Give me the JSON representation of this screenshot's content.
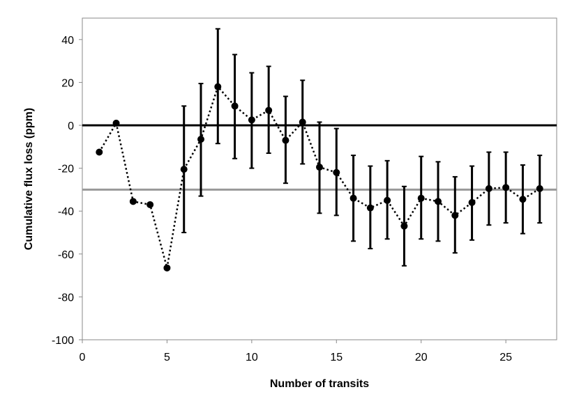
{
  "chart_data": {
    "type": "scatter",
    "title": "",
    "xlabel": "Number of transits",
    "ylabel": "Cumulative flux loss (ppm)",
    "xlim": [
      0,
      28
    ],
    "ylim": [
      -100,
      50
    ],
    "x_ticks": [
      0,
      5,
      10,
      15,
      20,
      25
    ],
    "y_ticks": [
      40,
      20,
      0,
      -20,
      -40,
      -60,
      -80,
      -100
    ],
    "x_tick_labels": [
      "0",
      "5",
      "10",
      "15",
      "20",
      "25"
    ],
    "y_tick_labels": [
      "40",
      "20",
      "0",
      "-20",
      "-40",
      "-60",
      "-80",
      "-100"
    ],
    "grid": false,
    "legend": "none",
    "series": [
      {
        "style": "dotted line with circular markers and vertical error bars",
        "color": "#000000",
        "x": [
          1,
          2,
          3,
          4,
          5,
          6,
          7,
          8,
          9,
          10,
          11,
          12,
          13,
          14,
          15,
          16,
          17,
          18,
          19,
          20,
          21,
          22,
          23,
          24,
          25,
          26,
          27
        ],
        "y": [
          -12.5,
          1,
          -35.5,
          -37,
          -66.5,
          -20.5,
          -6.5,
          18,
          9,
          2.5,
          7,
          -7,
          1.5,
          -19.5,
          -22,
          -34,
          -38.5,
          -35,
          -47,
          -34,
          -35.5,
          -42,
          -36,
          -29.5,
          -29,
          -34.5,
          -29.5
        ],
        "err_low": [
          null,
          null,
          null,
          null,
          null,
          -50,
          -33,
          -8.5,
          -15.5,
          -20,
          -13,
          -27,
          -18,
          -41,
          -42,
          -54,
          -57.5,
          -53,
          -65.5,
          -53,
          -54,
          -59.5,
          -53.5,
          -46.5,
          -45.5,
          -50.5,
          -45.5
        ],
        "err_high": [
          null,
          null,
          null,
          null,
          null,
          9,
          19.5,
          45,
          33,
          24.5,
          27.5,
          13.5,
          21,
          1.5,
          -1.5,
          -14,
          -19,
          -16.5,
          -28.5,
          -14.5,
          -17,
          -24,
          -19,
          -12.5,
          -12.5,
          -18.5,
          -14
        ]
      }
    ],
    "reference_lines": [
      {
        "y": 0,
        "color": "#000000"
      },
      {
        "y": -30,
        "color": "#999999"
      }
    ]
  }
}
